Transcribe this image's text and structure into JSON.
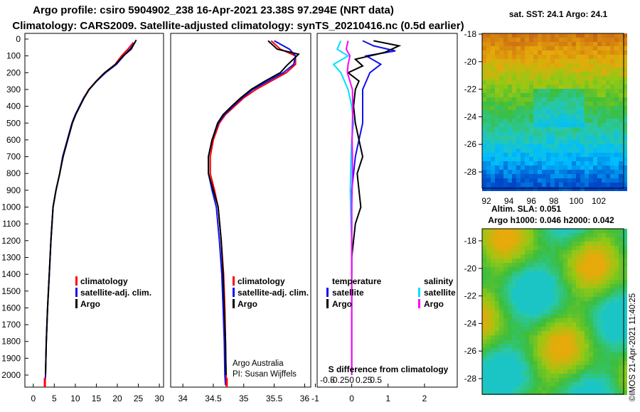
{
  "header": {
    "line1": "Argo profile: csiro 5904902_238 16-Apr-2021 23.38S 97.294E (NRT data)",
    "line2": "Climatology: CARS2009. Satellite-adjusted climatology: synTS_20210416.nc (0.5d earlier)"
  },
  "colors": {
    "climatology": "#ff0000",
    "satellite": "#1010ee",
    "argo": "#000000",
    "sat_salinity": "#00e0ff",
    "argo_salinity": "#ff00ff"
  },
  "depth_ticks": [
    0,
    100,
    200,
    300,
    400,
    500,
    600,
    700,
    800,
    900,
    1000,
    1100,
    1200,
    1300,
    1400,
    1500,
    1600,
    1700,
    1800,
    1900,
    2000
  ],
  "chart_data": [
    {
      "type": "line",
      "name": "temperature-profile",
      "ylim": [
        2080,
        0
      ],
      "xlim": [
        -2,
        31
      ],
      "xticks": [
        0,
        5,
        10,
        15,
        20,
        25,
        30
      ],
      "legend": [
        "climatology",
        "satellite-adj. clim.",
        "Argo"
      ],
      "series": [
        {
          "name": "climatology",
          "color": "#ff0000",
          "x": [
            23.8,
            22.5,
            21,
            19.5,
            17,
            15,
            13.2,
            12,
            11,
            10,
            9.2,
            8.1,
            7,
            6.3,
            5.4,
            4.7,
            4.2,
            3.8,
            3.4,
            3.1,
            2.9,
            2.75
          ],
          "y": [
            20,
            60,
            100,
            150,
            200,
            250,
            300,
            350,
            400,
            450,
            500,
            600,
            700,
            800,
            900,
            1000,
            1200,
            1400,
            1600,
            1800,
            2000,
            2060
          ]
        },
        {
          "name": "satellite-adj. clim.",
          "color": "#1010ee",
          "x": [
            24.2,
            23,
            21.5,
            19.8,
            17.2,
            15.1,
            13.3,
            12,
            11,
            10,
            9.2,
            8.1,
            7,
            6.3,
            5.4,
            4.7,
            4.2,
            3.8,
            3.4,
            3.1,
            2.9,
            2.75
          ],
          "y": [
            20,
            60,
            100,
            150,
            200,
            250,
            300,
            350,
            400,
            450,
            500,
            600,
            700,
            800,
            900,
            1000,
            1200,
            1400,
            1600,
            1800,
            2000,
            2060
          ]
        },
        {
          "name": "Argo",
          "color": "#000000",
          "x": [
            24.5,
            23.3,
            21.4,
            19.6,
            17,
            15,
            13.3,
            12.1,
            11.1,
            10.1,
            9.3,
            8.2,
            7.1,
            6.3,
            5.4,
            4.7,
            4.2,
            3.8,
            3.4,
            3.1,
            2.9
          ],
          "y": [
            5,
            60,
            100,
            150,
            200,
            250,
            300,
            350,
            400,
            450,
            500,
            600,
            700,
            800,
            900,
            1000,
            1200,
            1400,
            1600,
            1800,
            2000
          ]
        }
      ]
    },
    {
      "type": "line",
      "name": "salinity-profile",
      "ylim": [
        2080,
        0
      ],
      "xlim": [
        33.8,
        36.1
      ],
      "xticks": [
        34,
        34.5,
        35,
        35.5,
        36
      ],
      "legend": [
        "climatology",
        "satellite-adj. clim.",
        "Argo"
      ],
      "annotations": [
        "Argo Australia",
        "PI: Susan Wijffels"
      ],
      "series": [
        {
          "name": "climatology",
          "color": "#ff0000",
          "x": [
            35.45,
            35.6,
            35.85,
            35.85,
            35.7,
            35.45,
            35.2,
            35,
            34.85,
            34.7,
            34.6,
            34.5,
            34.45,
            34.45,
            34.52,
            34.58,
            34.63,
            34.67,
            34.69,
            34.7,
            34.71,
            34.72
          ],
          "y": [
            10,
            60,
            100,
            150,
            200,
            250,
            300,
            350,
            400,
            450,
            500,
            600,
            700,
            800,
            900,
            1000,
            1200,
            1400,
            1600,
            1800,
            2000,
            2060
          ]
        },
        {
          "name": "satellite-adj. clim.",
          "color": "#1010ee",
          "x": [
            35.5,
            35.75,
            35.85,
            35.82,
            35.65,
            35.4,
            35.15,
            34.97,
            34.82,
            34.68,
            34.58,
            34.48,
            34.42,
            34.42,
            34.48,
            34.55,
            34.6,
            34.64,
            34.66,
            34.68,
            34.69,
            34.7
          ],
          "y": [
            10,
            60,
            100,
            150,
            200,
            250,
            300,
            350,
            400,
            450,
            500,
            600,
            700,
            800,
            900,
            1000,
            1200,
            1400,
            1600,
            1800,
            2000,
            2060
          ]
        },
        {
          "name": "Argo",
          "color": "#000000",
          "x": [
            35.4,
            35.55,
            35.9,
            35.7,
            35.6,
            35.35,
            35.12,
            34.95,
            34.8,
            34.66,
            34.57,
            34.48,
            34.42,
            34.42,
            34.5,
            34.58,
            34.63,
            34.66,
            34.68,
            34.7,
            34.71
          ],
          "y": [
            10,
            60,
            90,
            160,
            200,
            250,
            300,
            350,
            400,
            450,
            500,
            600,
            700,
            800,
            900,
            1000,
            1200,
            1400,
            1600,
            1800,
            2000
          ]
        }
      ]
    },
    {
      "type": "line",
      "name": "difference-from-climatology",
      "xlabel": "S difference from climatology",
      "ylim": [
        2080,
        0
      ],
      "xlim": [
        -0.95,
        2.9
      ],
      "xticks": [
        -1,
        0,
        1,
        2
      ],
      "xticks_top": [
        -0.5,
        -0.25,
        0,
        0.25,
        0.5
      ],
      "legend_left_title": "temperature",
      "legend_right_title": "salinity",
      "legend_left": [
        "satellite",
        "Argo"
      ],
      "legend_right": [
        "satellite",
        "Argo"
      ],
      "series": [
        {
          "name": "temperature satellite",
          "color": "#1010ee",
          "x": [
            0.3,
            0.6,
            1.2,
            0.4,
            0.8,
            0.5,
            0.4,
            0.3,
            0.3,
            0.3,
            0.2,
            0.1,
            0.05,
            0.0,
            0.0,
            0.0,
            0.0
          ],
          "y": [
            10,
            40,
            70,
            100,
            150,
            200,
            250,
            300,
            400,
            500,
            600,
            700,
            800,
            900,
            1000,
            1200,
            1400
          ]
        },
        {
          "name": "temperature Argo",
          "color": "#000000",
          "x": [
            0.6,
            1.3,
            0.9,
            0.1,
            0.3,
            -0.1,
            0.2,
            0.1,
            0.05,
            0.1,
            0.2,
            0.3,
            0.15,
            0.2,
            0.25,
            0.1,
            0.0,
            0.0
          ],
          "y": [
            10,
            40,
            80,
            120,
            160,
            200,
            250,
            300,
            400,
            500,
            600,
            700,
            800,
            900,
            1000,
            1100,
            1300,
            2000
          ]
        },
        {
          "name": "salinity satellite",
          "color": "#00e0ff",
          "x": [
            -0.3,
            -0.4,
            -0.1,
            -0.5,
            -0.3,
            -0.1,
            0.0,
            0.05,
            0.0,
            -0.02,
            -0.03,
            -0.04,
            -0.03,
            -0.02,
            0.0,
            0.0,
            0.0
          ],
          "y": [
            10,
            60,
            100,
            150,
            200,
            300,
            400,
            500,
            600,
            700,
            800,
            900,
            1000,
            1100,
            1200,
            1500,
            2000
          ]
        },
        {
          "name": "salinity Argo",
          "color": "#ff00ff",
          "x": [
            -0.1,
            -0.15,
            -0.05,
            -0.1,
            -0.12,
            0.02,
            0.03,
            0.02,
            0.01,
            0.02,
            0.02,
            0.01,
            0.0,
            0.0,
            0.0
          ],
          "y": [
            10,
            60,
            100,
            150,
            200,
            300,
            400,
            500,
            600,
            700,
            800,
            900,
            1000,
            1500,
            2000
          ]
        }
      ]
    },
    {
      "type": "heatmap",
      "name": "sst-map",
      "title": "sat. SST: 24.1 Argo: 24.1",
      "xticks": [
        92,
        94,
        96,
        98,
        100,
        102
      ],
      "yticks": [
        -18,
        -20,
        -22,
        -24,
        -26,
        -28
      ]
    },
    {
      "type": "heatmap",
      "name": "sla-map",
      "title_line1": "Altim. SLA: 0.051",
      "title_line2": "Argo h1000: 0.046 h2000: 0.042",
      "yticks": [
        -18,
        -20,
        -22,
        -24,
        -26,
        -28
      ],
      "credit": "©IMOS 21-Apr-2021 11:40:25"
    }
  ]
}
